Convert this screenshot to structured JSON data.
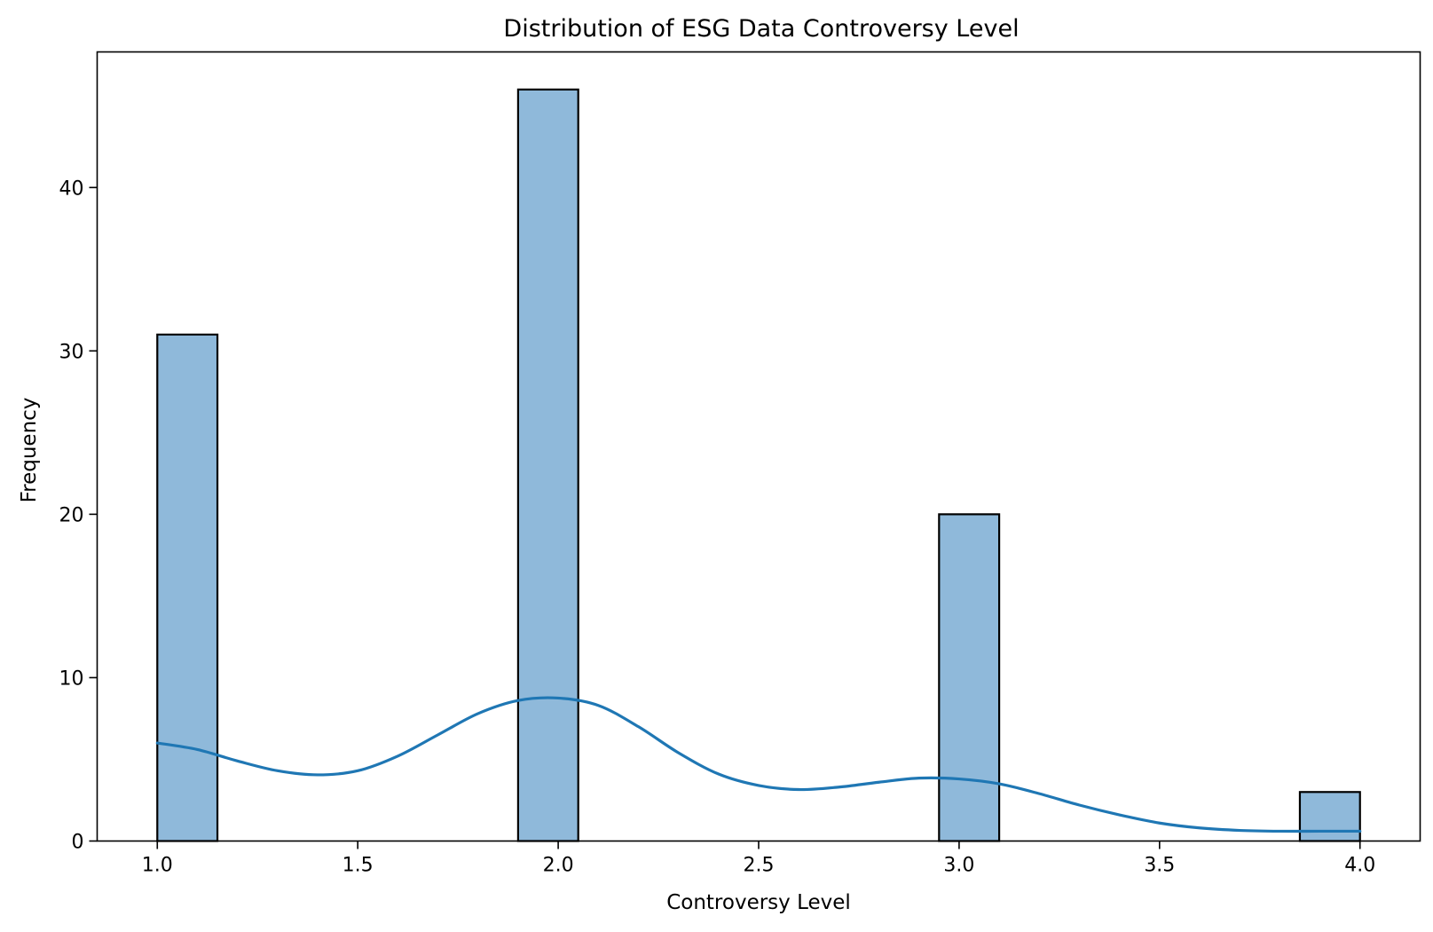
{
  "chart_data": {
    "type": "bar",
    "title": "Distribution of ESG Data Controversy Level",
    "xlabel": "Controversy Level",
    "ylabel": "Frequency",
    "xlim": [
      0.85,
      4.15
    ],
    "ylim": [
      0,
      48.3
    ],
    "xticks": [
      1.0,
      1.5,
      2.0,
      2.5,
      3.0,
      3.5,
      4.0
    ],
    "xtick_labels": [
      "1.0",
      "1.5",
      "2.0",
      "2.5",
      "3.0",
      "3.5",
      "4.0"
    ],
    "yticks": [
      0,
      10,
      20,
      30,
      40
    ],
    "ytick_labels": [
      "0",
      "10",
      "20",
      "30",
      "40"
    ],
    "bins": [
      {
        "x0": 1.0,
        "x1": 1.15,
        "count": 31
      },
      {
        "x0": 1.9,
        "x1": 2.05,
        "count": 46
      },
      {
        "x0": 2.95,
        "x1": 3.1,
        "count": 20
      },
      {
        "x0": 3.85,
        "x1": 4.0,
        "count": 3
      }
    ],
    "kde": {
      "x": [
        1.0,
        1.1,
        1.2,
        1.3,
        1.4,
        1.5,
        1.6,
        1.7,
        1.8,
        1.9,
        2.0,
        2.1,
        2.2,
        2.3,
        2.4,
        2.5,
        2.6,
        2.7,
        2.8,
        2.9,
        3.0,
        3.1,
        3.2,
        3.3,
        3.4,
        3.5,
        3.6,
        3.7,
        3.8,
        3.9,
        4.0
      ],
      "y": [
        6.0,
        5.6,
        4.9,
        4.3,
        4.05,
        4.3,
        5.2,
        6.5,
        7.8,
        8.6,
        8.75,
        8.3,
        7.0,
        5.4,
        4.1,
        3.4,
        3.15,
        3.3,
        3.6,
        3.85,
        3.8,
        3.5,
        2.9,
        2.2,
        1.6,
        1.1,
        0.8,
        0.65,
        0.6,
        0.6,
        0.6
      ]
    },
    "bar_color": "#8fb9da",
    "line_color": "#1f77b4",
    "grid": false,
    "legend": "none"
  }
}
